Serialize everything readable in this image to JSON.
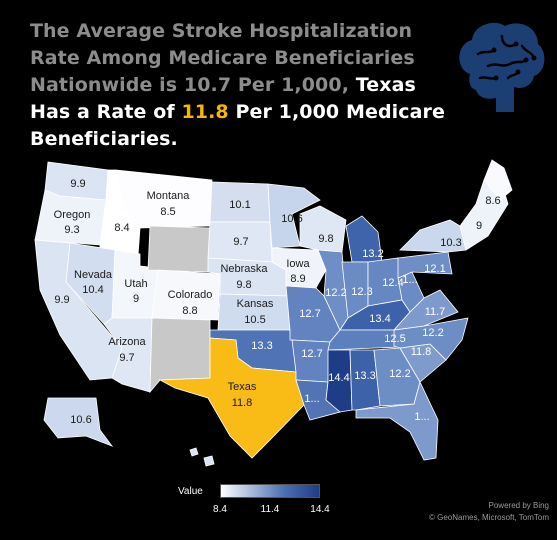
{
  "headline": {
    "part1": "The Average Stroke Hospitalization Rate Among Medicare Beneficiaries Nationwide is 10.7 Per 1,000, ",
    "part2": "Texas Has a Rate of ",
    "highlight": "11.8",
    "part3": " Per 1,000 Medicare Beneficiaries."
  },
  "icon": "brain-icon",
  "colors": {
    "highlight": "#f5b800",
    "scale_low": "#ffffff",
    "scale_high": "#1f3c88",
    "no_data": "#c8c8c8"
  },
  "map_labels": [
    {
      "id": "wa",
      "value": "9.9"
    },
    {
      "id": "or_name",
      "value": "Oregon"
    },
    {
      "id": "or",
      "value": "9.3"
    },
    {
      "id": "id",
      "value": "8.4"
    },
    {
      "id": "mt_name",
      "value": "Montana"
    },
    {
      "id": "mt",
      "value": "8.5"
    },
    {
      "id": "nd",
      "value": "10.1"
    },
    {
      "id": "mn",
      "value": "10.6"
    },
    {
      "id": "me",
      "value": "8.6"
    },
    {
      "id": "nh",
      "value": "9"
    },
    {
      "id": "wi",
      "value": "9.8"
    },
    {
      "id": "sd",
      "value": "9.7"
    },
    {
      "id": "mi",
      "value": "13.2"
    },
    {
      "id": "ny",
      "value": "10.3"
    },
    {
      "id": "ia_name",
      "value": "Iowa"
    },
    {
      "id": "ia",
      "value": "8.9"
    },
    {
      "id": "nv_name",
      "value": "Nevada"
    },
    {
      "id": "nv",
      "value": "10.4"
    },
    {
      "id": "ut_name",
      "value": "Utah"
    },
    {
      "id": "ut",
      "value": "9"
    },
    {
      "id": "ne_name",
      "value": "Nebraska"
    },
    {
      "id": "ne",
      "value": "9.8"
    },
    {
      "id": "pa",
      "value": "12.1"
    },
    {
      "id": "ca",
      "value": "9.9"
    },
    {
      "id": "co_name",
      "value": "Colorado"
    },
    {
      "id": "co",
      "value": "8.8"
    },
    {
      "id": "il",
      "value": "12.2"
    },
    {
      "id": "in",
      "value": "12.3"
    },
    {
      "id": "oh",
      "value": "12.4"
    },
    {
      "id": "wv",
      "value": "1..."
    },
    {
      "id": "ks_name",
      "value": "Kansas"
    },
    {
      "id": "ks",
      "value": "10.5"
    },
    {
      "id": "mo",
      "value": "12.7"
    },
    {
      "id": "ky",
      "value": "13.4"
    },
    {
      "id": "va",
      "value": "11.7"
    },
    {
      "id": "az_name",
      "value": "Arizona"
    },
    {
      "id": "az",
      "value": "9.7"
    },
    {
      "id": "ok",
      "value": "13.3"
    },
    {
      "id": "tn",
      "value": "12.5"
    },
    {
      "id": "nc",
      "value": "12.2"
    },
    {
      "id": "ar",
      "value": "12.7"
    },
    {
      "id": "sc",
      "value": "11.8"
    },
    {
      "id": "ms",
      "value": "14.4"
    },
    {
      "id": "al",
      "value": "13.3"
    },
    {
      "id": "ga",
      "value": "12.2"
    },
    {
      "id": "tx_name",
      "value": "Texas"
    },
    {
      "id": "tx",
      "value": "11.8"
    },
    {
      "id": "la",
      "value": "1..."
    },
    {
      "id": "fl",
      "value": "1..."
    },
    {
      "id": "ak",
      "value": "10.6"
    }
  ],
  "legend": {
    "title": "Value",
    "min": "8.4",
    "mid": "11.4",
    "max": "14.4"
  },
  "credits": {
    "line1": "Powered by Bing",
    "line2": "© GeoNames, Microsoft, TomTom"
  }
}
